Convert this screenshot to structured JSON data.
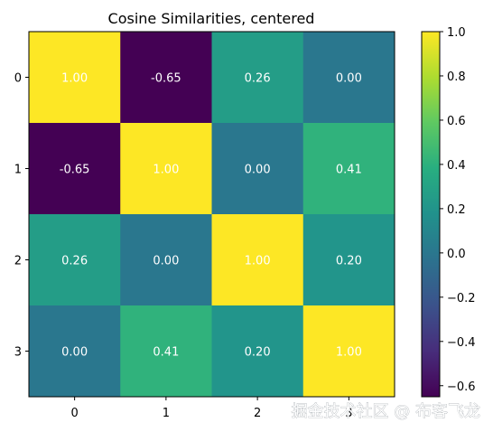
{
  "chart_data": {
    "type": "heatmap",
    "title": "Cosine Similarities, centered",
    "row_labels": [
      "0",
      "1",
      "2",
      "3"
    ],
    "col_labels": [
      "0",
      "1",
      "2",
      "3"
    ],
    "values": [
      [
        1.0,
        -0.65,
        0.26,
        0.0
      ],
      [
        -0.65,
        1.0,
        0.0,
        0.41
      ],
      [
        0.26,
        0.0,
        1.0,
        0.2
      ],
      [
        0.0,
        0.41,
        0.2,
        1.0
      ]
    ],
    "cell_labels": [
      [
        "1.00",
        "-0.65",
        "0.26",
        "0.00"
      ],
      [
        "-0.65",
        "1.00",
        "0.00",
        "0.41"
      ],
      [
        "0.26",
        "0.00",
        "1.00",
        "0.20"
      ],
      [
        "0.00",
        "0.41",
        "0.20",
        "1.00"
      ]
    ],
    "colorbar": {
      "range": [
        -0.65,
        1.0
      ],
      "ticks": [
        -0.6,
        -0.4,
        -0.2,
        0.0,
        0.2,
        0.4,
        0.6,
        0.8,
        1.0
      ],
      "tick_labels": [
        "−0.6",
        "−0.4",
        "−0.2",
        "0.0",
        "0.2",
        "0.4",
        "0.6",
        "0.8",
        "1.0"
      ]
    },
    "colormap": "viridis",
    "grid": false
  },
  "watermark": "掘金技术社区 @ 布客飞龙"
}
